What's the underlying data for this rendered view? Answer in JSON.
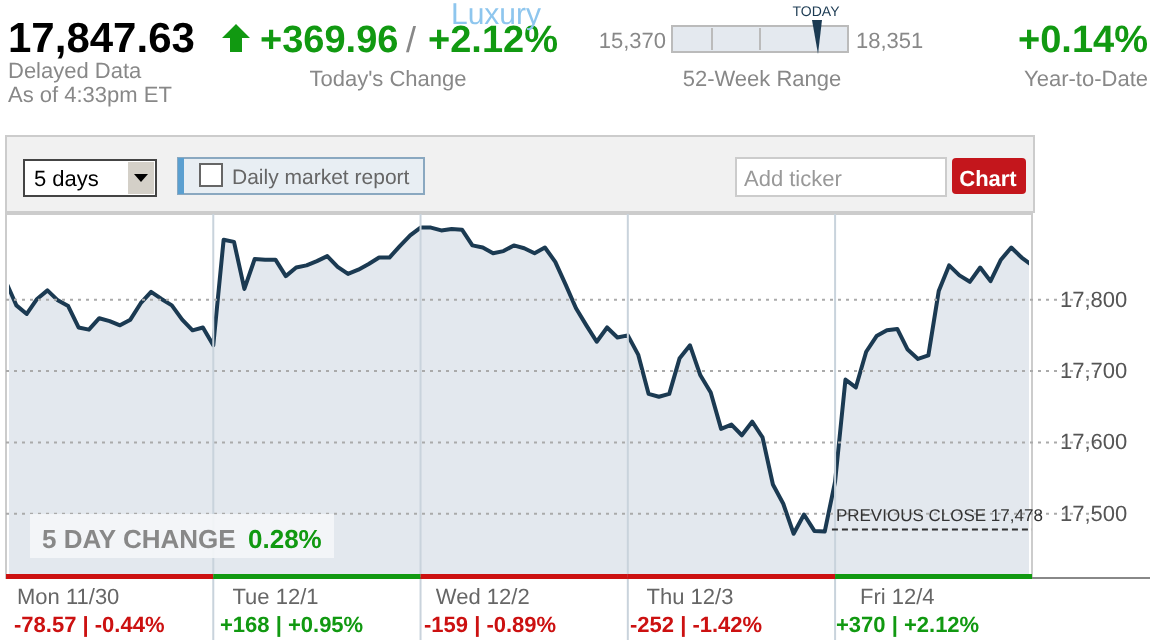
{
  "chart_data": {
    "type": "area",
    "ylim": [
      17410,
      17920
    ],
    "categories": [
      null,
      null,
      null,
      null,
      null,
      null,
      "Mon 11/30",
      null,
      null,
      null,
      null,
      null,
      null,
      null,
      null,
      null,
      null,
      null,
      null,
      null,
      null,
      null,
      null,
      null,
      null,
      null,
      "Tue 12/1",
      null,
      null,
      null,
      null,
      null,
      null,
      null,
      null,
      null,
      null,
      null,
      null,
      null,
      null,
      null,
      null,
      null,
      null,
      null,
      "Wed 12/2",
      null,
      null,
      null,
      null,
      null,
      null,
      null,
      null,
      null,
      null,
      null,
      null,
      null,
      null,
      null,
      null,
      null,
      null,
      null,
      "Thu 12/3",
      null,
      null,
      null,
      null,
      null,
      null,
      null,
      null,
      null,
      null,
      null,
      null,
      null,
      null,
      null,
      null,
      null,
      null,
      null,
      "Fri 12/4",
      null,
      null,
      null,
      null,
      null,
      null,
      null,
      null,
      null,
      null,
      null,
      null,
      null
    ],
    "yticks": [
      {
        "value": 17500,
        "label": "17,500"
      },
      {
        "value": 17600,
        "label": "17,600"
      },
      {
        "value": 17700,
        "label": "17,700"
      },
      {
        "value": 17800,
        "label": "17,800"
      }
    ],
    "grid": "y",
    "series": [
      {
        "color": "#1b3a52",
        "values": [
          17825,
          17792,
          17780,
          17801,
          17813,
          17799,
          17791,
          17761,
          17758,
          17774,
          17770,
          17764,
          17772,
          17795,
          17811,
          17801,
          17792,
          17772,
          17757,
          17761,
          17736,
          17884,
          17881,
          17815,
          17857,
          17856,
          17856,
          17833,
          17845,
          17848,
          17854,
          17861,
          17846,
          17836,
          17842,
          17850,
          17859,
          17859,
          17875,
          17890,
          17901,
          17901,
          17897,
          17899,
          17898,
          17876,
          17873,
          17865,
          17868,
          17876,
          17872,
          17865,
          17873,
          17853,
          17821,
          17788,
          17764,
          17741,
          17761,
          17747,
          17750,
          17723,
          17668,
          17664,
          17668,
          17718,
          17736,
          17694,
          17670,
          17619,
          17625,
          17610,
          17629,
          17607,
          17541,
          17514,
          17472,
          17499,
          17476,
          17475,
          17545,
          17688,
          17677,
          17727,
          17749,
          17757,
          17759,
          17730,
          17717,
          17722,
          17812,
          17848,
          17834,
          17825,
          17845,
          17826,
          17856,
          17873,
          17859,
          17848
        ]
      }
    ],
    "ref_lines": [
      {
        "axis": "y",
        "value": 17478,
        "label": "PREVIOUS CLOSE 17,478",
        "line_style": "dashed",
        "color": "#333333"
      }
    ],
    "annotations": [
      "17,847.63",
      "Delayed Data",
      "As of 4:33pm ET",
      "+369.96",
      "/",
      "+2.12%",
      "Today's Change",
      "15,370",
      "18,351",
      "TODAY",
      "52-Week Range",
      "+0.14%",
      "Year-to-Date",
      "Luxury",
      "5 days",
      "Daily market report",
      "Add ticker",
      "Chart",
      "5 DAY CHANGE",
      "0.28%",
      "-78.57 | -0.44%",
      "+168 | +0.95%",
      "-159 | -0.89%",
      "-252 | -1.42%",
      "+370 | +2.12%"
    ]
  }
}
